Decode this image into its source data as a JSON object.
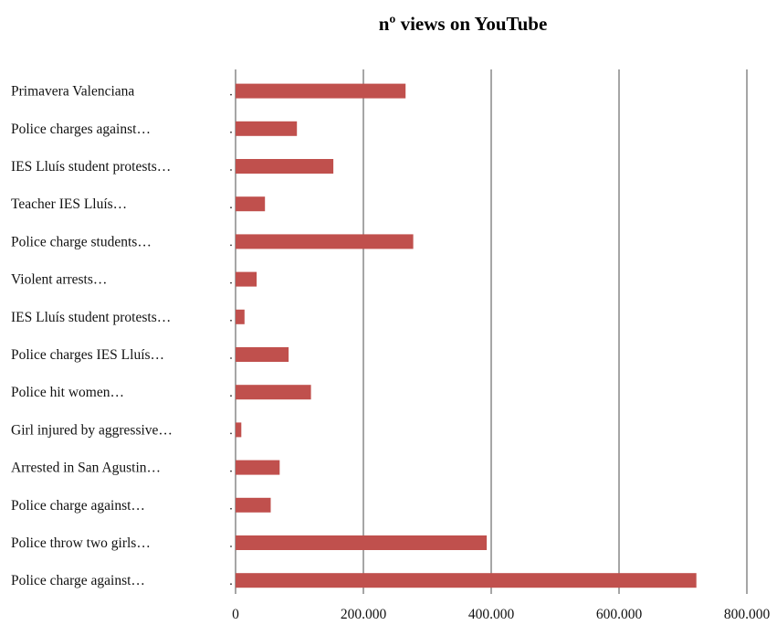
{
  "chart_data": {
    "type": "bar",
    "orientation": "horizontal",
    "title": "nº views on YouTube",
    "xlabel": "",
    "ylabel": "",
    "categories": [
      "Primavera Valenciana",
      "Police charges against…",
      "IES Lluís student protests…",
      "Teacher IES Lluís…",
      "Police charge students…",
      "Violent arrests…",
      "IES Lluís student protests…",
      "Police charges IES Lluís…",
      "Police hit women…",
      "Girl injured by aggressive…",
      "Arrested in San Agustin…",
      "Police charge against…",
      "Police throw two girls…",
      "Police charge against…"
    ],
    "values": [
      266000,
      96000,
      153000,
      46000,
      278000,
      33000,
      14000,
      83000,
      118000,
      9000,
      69000,
      55000,
      393000,
      721000
    ],
    "xlim": [
      0,
      800000
    ],
    "xticks": [
      0,
      200000,
      400000,
      600000,
      800000
    ],
    "xtick_labels": [
      "0",
      "200.000",
      "400.000",
      "600.000",
      "800.000"
    ],
    "grid": "vertical",
    "legend": "none",
    "colors": {
      "bar": "#c0504d",
      "grid": "#7f7f7f"
    }
  }
}
